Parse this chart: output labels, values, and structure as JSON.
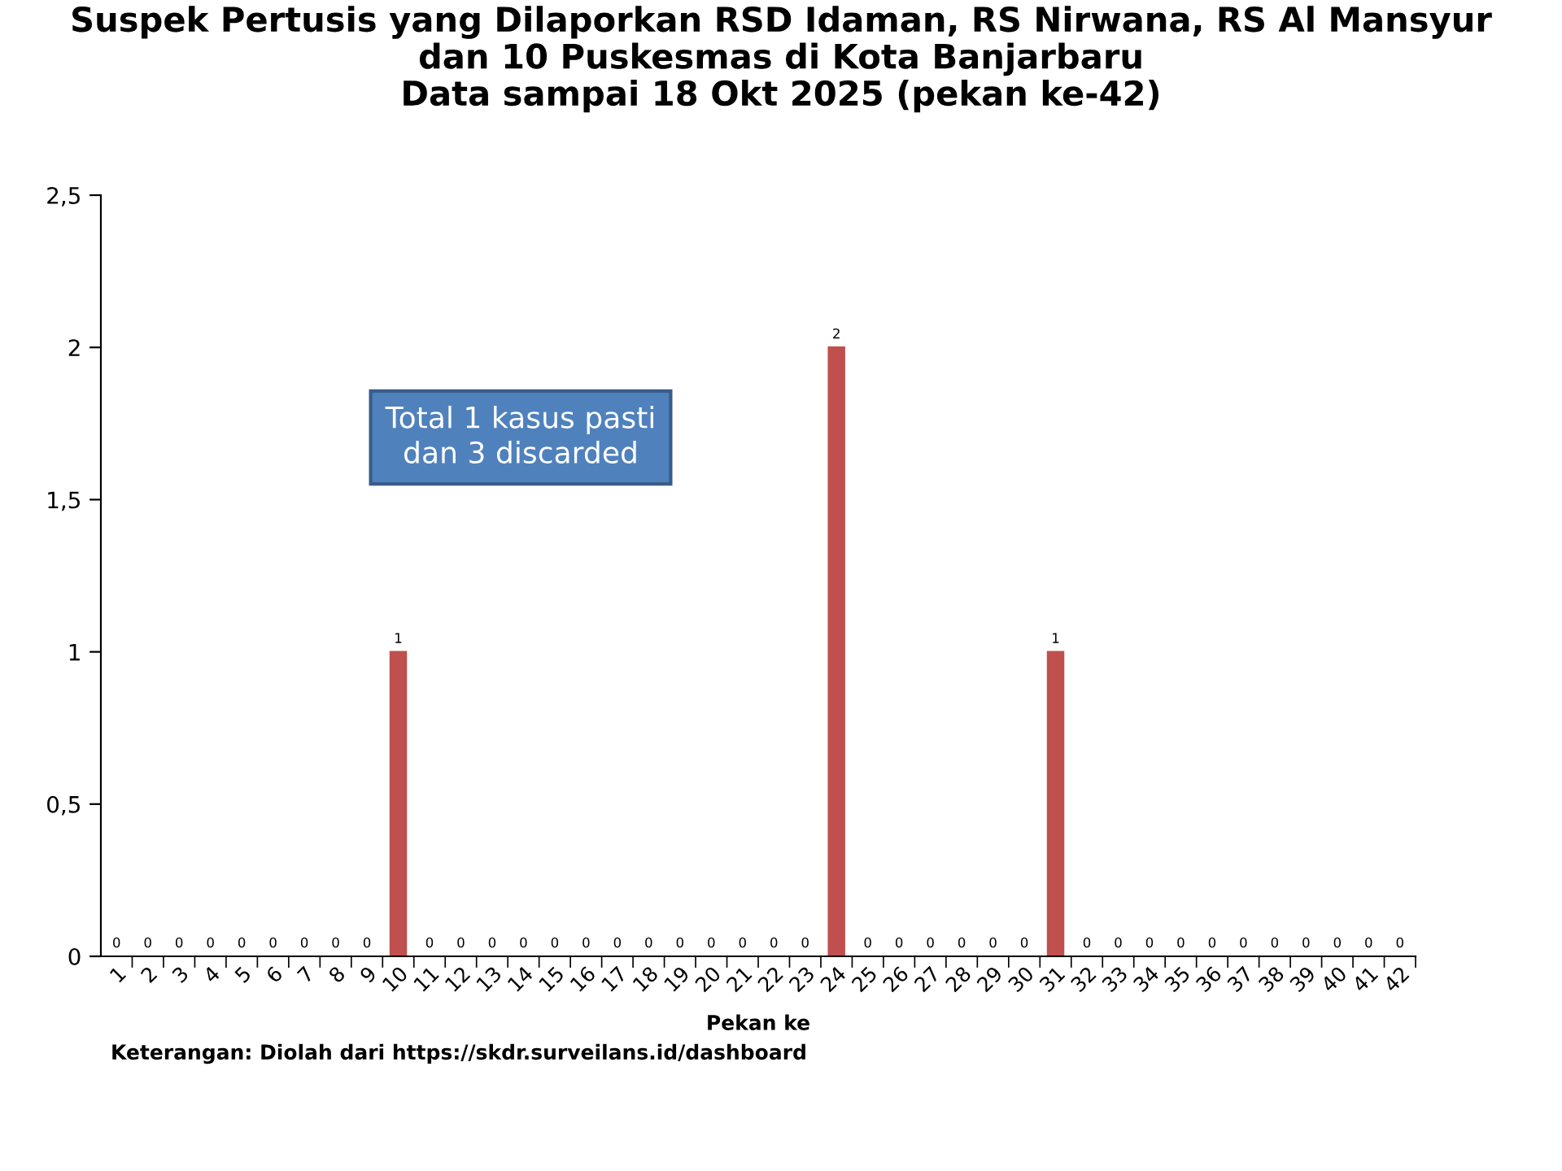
{
  "chart_data": {
    "type": "bar",
    "title": "Suspek Pertusis yang Dilaporkan RSD Idaman, RS Nirwana, RS Al Mansyur\ndan 10 Puskesmas di Kota Banjarbaru\nData sampai 18 Okt 2025 (pekan ke-42)",
    "xlabel": "Pekan ke",
    "categories": [
      "1",
      "2",
      "3",
      "4",
      "5",
      "6",
      "7",
      "8",
      "9",
      "10",
      "11",
      "12",
      "13",
      "14",
      "15",
      "16",
      "17",
      "18",
      "19",
      "20",
      "21",
      "22",
      "23",
      "24",
      "25",
      "26",
      "27",
      "28",
      "29",
      "30",
      "31",
      "32",
      "33",
      "34",
      "35",
      "36",
      "37",
      "38",
      "39",
      "40",
      "41",
      "42"
    ],
    "values": [
      0,
      0,
      0,
      0,
      0,
      0,
      0,
      0,
      0,
      1,
      0,
      0,
      0,
      0,
      0,
      0,
      0,
      0,
      0,
      0,
      0,
      0,
      0,
      2,
      0,
      0,
      0,
      0,
      0,
      0,
      1,
      0,
      0,
      0,
      0,
      0,
      0,
      0,
      0,
      0,
      0,
      0
    ],
    "color": "#c0504d",
    "ylim": [
      0,
      2.5
    ],
    "yticks": [
      0,
      {
        "value": 0.5,
        "label": "0,5"
      },
      1,
      {
        "value": 1.5,
        "label": "1,5"
      },
      2,
      {
        "value": 2.5,
        "label": "2,5"
      }
    ],
    "data_labels": true,
    "grid": false,
    "legend": false,
    "annotations": [
      "Total 1 kasus pasti\ndan 3 discarded",
      "Keterangan: Diolah dari https://skdr.surveilans.id/dashboard"
    ]
  }
}
